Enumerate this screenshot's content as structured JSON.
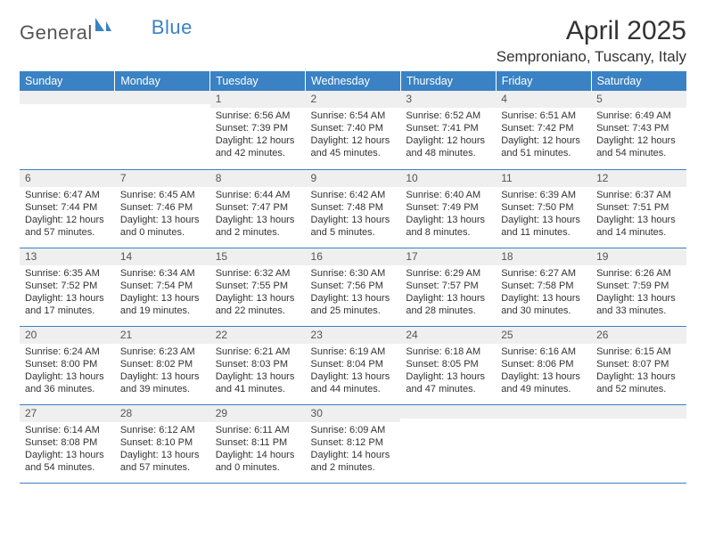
{
  "logo": {
    "word1": "General",
    "word2": "Blue"
  },
  "title": "April 2025",
  "location": "Semproniano, Tuscany, Italy",
  "colors": {
    "accent": "#3a82c4",
    "header_bg": "#3a82c4",
    "daynum_bg": "#efefef",
    "text": "#333333"
  },
  "weekday_labels": [
    "Sunday",
    "Monday",
    "Tuesday",
    "Wednesday",
    "Thursday",
    "Friday",
    "Saturday"
  ],
  "weeks": [
    [
      {
        "n": "",
        "sr": "",
        "ss": "",
        "dl": ""
      },
      {
        "n": "",
        "sr": "",
        "ss": "",
        "dl": ""
      },
      {
        "n": "1",
        "sr": "6:56 AM",
        "ss": "7:39 PM",
        "dl": "12 hours and 42 minutes."
      },
      {
        "n": "2",
        "sr": "6:54 AM",
        "ss": "7:40 PM",
        "dl": "12 hours and 45 minutes."
      },
      {
        "n": "3",
        "sr": "6:52 AM",
        "ss": "7:41 PM",
        "dl": "12 hours and 48 minutes."
      },
      {
        "n": "4",
        "sr": "6:51 AM",
        "ss": "7:42 PM",
        "dl": "12 hours and 51 minutes."
      },
      {
        "n": "5",
        "sr": "6:49 AM",
        "ss": "7:43 PM",
        "dl": "12 hours and 54 minutes."
      }
    ],
    [
      {
        "n": "6",
        "sr": "6:47 AM",
        "ss": "7:44 PM",
        "dl": "12 hours and 57 minutes."
      },
      {
        "n": "7",
        "sr": "6:45 AM",
        "ss": "7:46 PM",
        "dl": "13 hours and 0 minutes."
      },
      {
        "n": "8",
        "sr": "6:44 AM",
        "ss": "7:47 PM",
        "dl": "13 hours and 2 minutes."
      },
      {
        "n": "9",
        "sr": "6:42 AM",
        "ss": "7:48 PM",
        "dl": "13 hours and 5 minutes."
      },
      {
        "n": "10",
        "sr": "6:40 AM",
        "ss": "7:49 PM",
        "dl": "13 hours and 8 minutes."
      },
      {
        "n": "11",
        "sr": "6:39 AM",
        "ss": "7:50 PM",
        "dl": "13 hours and 11 minutes."
      },
      {
        "n": "12",
        "sr": "6:37 AM",
        "ss": "7:51 PM",
        "dl": "13 hours and 14 minutes."
      }
    ],
    [
      {
        "n": "13",
        "sr": "6:35 AM",
        "ss": "7:52 PM",
        "dl": "13 hours and 17 minutes."
      },
      {
        "n": "14",
        "sr": "6:34 AM",
        "ss": "7:54 PM",
        "dl": "13 hours and 19 minutes."
      },
      {
        "n": "15",
        "sr": "6:32 AM",
        "ss": "7:55 PM",
        "dl": "13 hours and 22 minutes."
      },
      {
        "n": "16",
        "sr": "6:30 AM",
        "ss": "7:56 PM",
        "dl": "13 hours and 25 minutes."
      },
      {
        "n": "17",
        "sr": "6:29 AM",
        "ss": "7:57 PM",
        "dl": "13 hours and 28 minutes."
      },
      {
        "n": "18",
        "sr": "6:27 AM",
        "ss": "7:58 PM",
        "dl": "13 hours and 30 minutes."
      },
      {
        "n": "19",
        "sr": "6:26 AM",
        "ss": "7:59 PM",
        "dl": "13 hours and 33 minutes."
      }
    ],
    [
      {
        "n": "20",
        "sr": "6:24 AM",
        "ss": "8:00 PM",
        "dl": "13 hours and 36 minutes."
      },
      {
        "n": "21",
        "sr": "6:23 AM",
        "ss": "8:02 PM",
        "dl": "13 hours and 39 minutes."
      },
      {
        "n": "22",
        "sr": "6:21 AM",
        "ss": "8:03 PM",
        "dl": "13 hours and 41 minutes."
      },
      {
        "n": "23",
        "sr": "6:19 AM",
        "ss": "8:04 PM",
        "dl": "13 hours and 44 minutes."
      },
      {
        "n": "24",
        "sr": "6:18 AM",
        "ss": "8:05 PM",
        "dl": "13 hours and 47 minutes."
      },
      {
        "n": "25",
        "sr": "6:16 AM",
        "ss": "8:06 PM",
        "dl": "13 hours and 49 minutes."
      },
      {
        "n": "26",
        "sr": "6:15 AM",
        "ss": "8:07 PM",
        "dl": "13 hours and 52 minutes."
      }
    ],
    [
      {
        "n": "27",
        "sr": "6:14 AM",
        "ss": "8:08 PM",
        "dl": "13 hours and 54 minutes."
      },
      {
        "n": "28",
        "sr": "6:12 AM",
        "ss": "8:10 PM",
        "dl": "13 hours and 57 minutes."
      },
      {
        "n": "29",
        "sr": "6:11 AM",
        "ss": "8:11 PM",
        "dl": "14 hours and 0 minutes."
      },
      {
        "n": "30",
        "sr": "6:09 AM",
        "ss": "8:12 PM",
        "dl": "14 hours and 2 minutes."
      },
      {
        "n": "",
        "sr": "",
        "ss": "",
        "dl": ""
      },
      {
        "n": "",
        "sr": "",
        "ss": "",
        "dl": ""
      },
      {
        "n": "",
        "sr": "",
        "ss": "",
        "dl": ""
      }
    ]
  ],
  "labels": {
    "sunrise": "Sunrise: ",
    "sunset": "Sunset: ",
    "daylight": "Daylight: "
  }
}
